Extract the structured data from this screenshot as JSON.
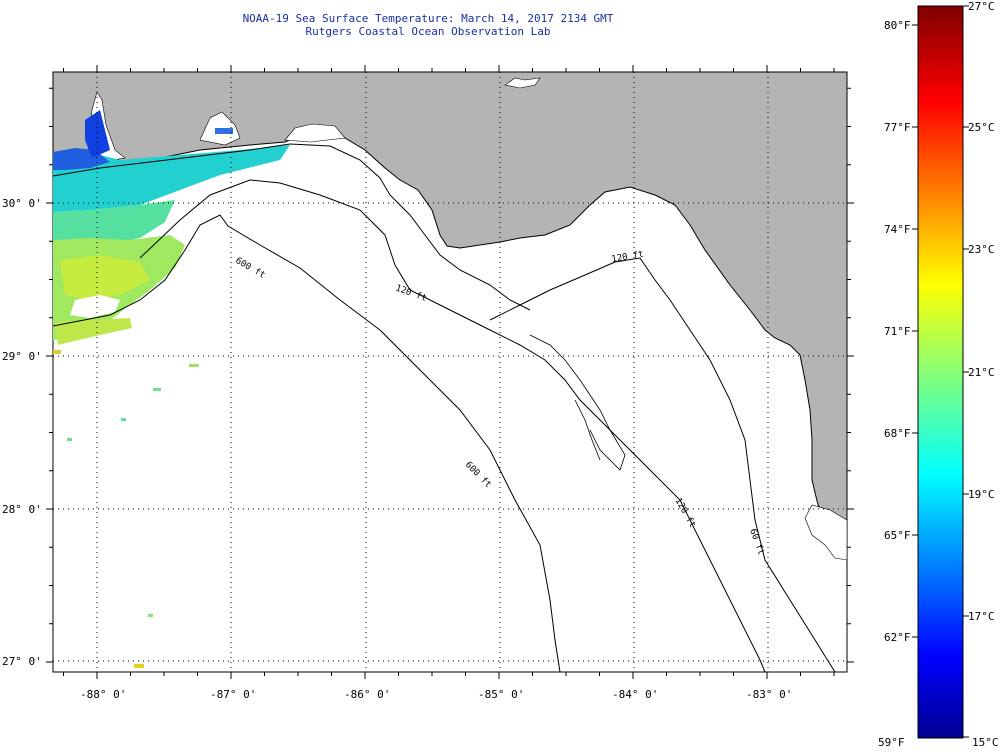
{
  "header": {
    "title": "NOAA-19 Sea Surface Temperature:  March 14, 2017 2134 GMT",
    "subtitle": "Rutgers Coastal Ocean Observation Lab"
  },
  "map": {
    "lon_labels": [
      "-88° 0'",
      "-87° 0'",
      "-86° 0'",
      "-85° 0'",
      "-84° 0'",
      "-83° 0'"
    ],
    "lat_labels": [
      "30° 0'",
      "29° 0'",
      "28° 0'",
      "27° 0'"
    ],
    "contour_labels": [
      "600 ft",
      "120 ft",
      "600 ft",
      "120 ft",
      "120 ft",
      "60 ft"
    ],
    "colors": {
      "land": "#b4b4b4",
      "ocean": "#ffffff",
      "coast": "#000000"
    }
  },
  "colorbar": {
    "fahrenheit_labels": [
      "80°F",
      "77°F",
      "74°F",
      "71°F",
      "68°F",
      "65°F",
      "62°F",
      "59°F"
    ],
    "celsius_labels": [
      "27°C",
      "25°C",
      "23°C",
      "21°C",
      "19°C",
      "17°C",
      "15°C"
    ],
    "range_c": [
      15,
      27
    ],
    "colormap": "jet"
  }
}
